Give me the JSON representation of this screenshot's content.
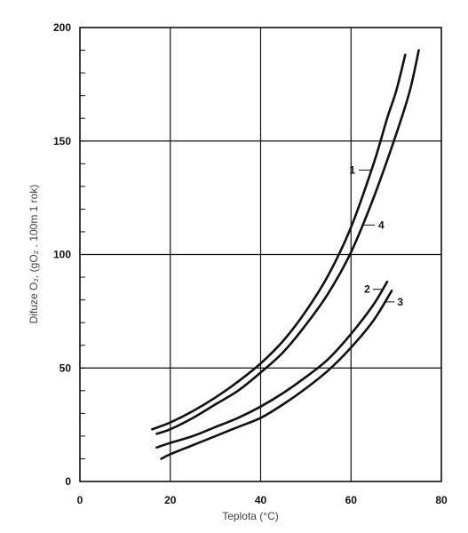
{
  "chart_data": {
    "type": "line",
    "title": "",
    "xlabel": "Teplota (°C)",
    "ylabel": "Difuze O₂, (gO₂ . 100m 1 rok)",
    "xlim": [
      0,
      80
    ],
    "ylim": [
      0,
      200
    ],
    "x_ticks": [
      "0",
      "20",
      "40",
      "60",
      "80"
    ],
    "y_ticks": [
      "0",
      "50",
      "100",
      "150",
      "200"
    ],
    "grid": true,
    "series": [
      {
        "name": "1",
        "x": [
          16,
          20,
          25,
          30,
          35,
          40,
          45,
          50,
          55,
          60,
          65,
          68,
          70,
          72
        ],
        "y": [
          23,
          26,
          31,
          37,
          44,
          52,
          62,
          75,
          91,
          112,
          140,
          160,
          172,
          188
        ]
      },
      {
        "name": "4",
        "x": [
          17,
          20,
          25,
          30,
          35,
          40,
          45,
          50,
          55,
          60,
          65,
          70,
          73,
          75
        ],
        "y": [
          21,
          23,
          28,
          34,
          40,
          48,
          57,
          69,
          83,
          101,
          125,
          153,
          172,
          190
        ]
      },
      {
        "name": "2",
        "x": [
          17,
          20,
          25,
          30,
          35,
          40,
          45,
          50,
          55,
          60,
          65,
          68
        ],
        "y": [
          15,
          17,
          20,
          24,
          28,
          33,
          39,
          46,
          54,
          65,
          78,
          88
        ]
      },
      {
        "name": "3",
        "x": [
          18,
          20,
          25,
          30,
          35,
          40,
          45,
          50,
          55,
          60,
          65,
          69
        ],
        "y": [
          10,
          12,
          16,
          20,
          24,
          28,
          34,
          41,
          49,
          59,
          71,
          84
        ]
      }
    ]
  }
}
